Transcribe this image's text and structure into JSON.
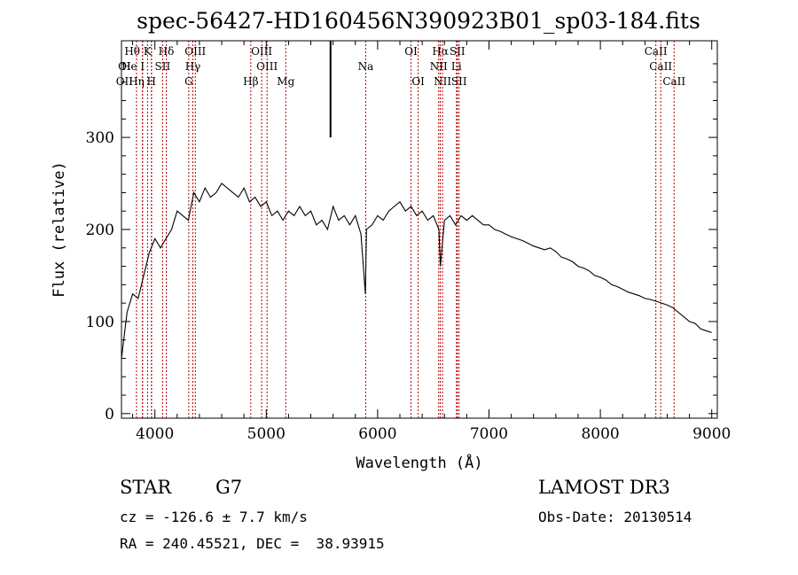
{
  "chart_data": {
    "type": "line",
    "title": "spec-56427-HD160456N390923B01_sp03-184.fits",
    "xlabel": "Wavelength (Å)",
    "ylabel": "Flux (relative)",
    "xlim": [
      3700,
      9050
    ],
    "ylim": [
      -5,
      405
    ],
    "xticks": [
      4000,
      5000,
      6000,
      7000,
      8000,
      9000
    ],
    "yticks": [
      0,
      100,
      200,
      300
    ],
    "series": [
      {
        "name": "flux",
        "x": [
          3700,
          3750,
          3800,
          3850,
          3900,
          3950,
          4000,
          4050,
          4100,
          4150,
          4200,
          4250,
          4300,
          4350,
          4400,
          4450,
          4500,
          4550,
          4600,
          4650,
          4700,
          4750,
          4800,
          4850,
          4900,
          4950,
          5000,
          5050,
          5100,
          5150,
          5200,
          5250,
          5300,
          5350,
          5400,
          5450,
          5500,
          5550,
          5600,
          5650,
          5700,
          5750,
          5800,
          5850,
          5890,
          5900,
          5950,
          6000,
          6050,
          6100,
          6150,
          6200,
          6250,
          6300,
          6350,
          6400,
          6450,
          6500,
          6550,
          6563,
          6600,
          6650,
          6700,
          6750,
          6800,
          6850,
          6900,
          6950,
          7000,
          7050,
          7100,
          7150,
          7200,
          7250,
          7300,
          7350,
          7400,
          7450,
          7500,
          7550,
          7600,
          7650,
          7700,
          7750,
          7800,
          7850,
          7900,
          7950,
          8000,
          8050,
          8100,
          8150,
          8200,
          8250,
          8300,
          8350,
          8400,
          8450,
          8500,
          8550,
          8600,
          8650,
          8700,
          8750,
          8800,
          8850,
          8900,
          8950,
          9000
        ],
        "y": [
          60,
          110,
          130,
          125,
          150,
          175,
          190,
          180,
          190,
          200,
          220,
          215,
          210,
          240,
          230,
          245,
          235,
          240,
          250,
          245,
          240,
          235,
          245,
          230,
          235,
          225,
          230,
          215,
          220,
          210,
          220,
          215,
          225,
          215,
          220,
          205,
          210,
          200,
          225,
          210,
          215,
          205,
          215,
          195,
          130,
          200,
          205,
          215,
          210,
          220,
          225,
          230,
          220,
          225,
          215,
          220,
          210,
          215,
          200,
          160,
          210,
          215,
          205,
          215,
          210,
          215,
          210,
          205,
          205,
          200,
          198,
          195,
          192,
          190,
          188,
          185,
          182,
          180,
          178,
          180,
          176,
          170,
          168,
          165,
          160,
          158,
          155,
          150,
          148,
          145,
          140,
          138,
          135,
          132,
          130,
          128,
          125,
          124,
          122,
          120,
          118,
          115,
          110,
          105,
          100,
          98,
          92,
          90,
          88
        ]
      }
    ],
    "lines": [
      {
        "name": "Ca II K",
        "wl": 3934
      },
      {
        "name": "Ca II H",
        "wl": 3969
      },
      {
        "name": "H-epsilon",
        "wl": 3970
      },
      {
        "name": "H-eta",
        "wl": 3835
      },
      {
        "name": "H-zeta",
        "wl": 3889
      },
      {
        "name": "He I",
        "wl": 3889
      },
      {
        "name": "S II",
        "wl": 4069
      },
      {
        "name": "H-delta",
        "wl": 4102
      },
      {
        "name": "G band",
        "wl": 4304
      },
      {
        "name": "H-gamma",
        "wl": 4341
      },
      {
        "name": "O III 4363",
        "wl": 4363
      },
      {
        "name": "H-beta",
        "wl": 4861
      },
      {
        "name": "O III 4959",
        "wl": 4959
      },
      {
        "name": "O III 5007",
        "wl": 5007
      },
      {
        "name": "Mg",
        "wl": 5175
      },
      {
        "name": "Na",
        "wl": 5893
      },
      {
        "name": "O I 6300",
        "wl": 6300
      },
      {
        "name": "O I 6364",
        "wl": 6364
      },
      {
        "name": "N II 6548",
        "wl": 6548
      },
      {
        "name": "H-alpha",
        "wl": 6563
      },
      {
        "name": "N II 6583",
        "wl": 6583
      },
      {
        "name": "Li",
        "wl": 6708
      },
      {
        "name": "S II 6716",
        "wl": 6716
      },
      {
        "name": "S II 6731",
        "wl": 6731
      },
      {
        "name": "Ca II 8498",
        "wl": 8498
      },
      {
        "name": "Ca II 8542",
        "wl": 8542
      },
      {
        "name": "Ca II 8662",
        "wl": 8662
      }
    ],
    "line_labels": [
      {
        "text": "Hθ",
        "wl": 3797,
        "row": 0
      },
      {
        "text": "K",
        "wl": 3934,
        "row": 0
      },
      {
        "text": "Hδ",
        "wl": 4102,
        "row": 0
      },
      {
        "text": "OIII",
        "wl": 4363,
        "row": 0
      },
      {
        "text": "OIII",
        "wl": 4959,
        "row": 0
      },
      {
        "text": "OI",
        "wl": 6300,
        "row": 0
      },
      {
        "text": "Hα",
        "wl": 6563,
        "row": 0
      },
      {
        "text": "SII",
        "wl": 6716,
        "row": 0
      },
      {
        "text": "CaII",
        "wl": 8498,
        "row": 0
      },
      {
        "text": "OI",
        "wl": 3727,
        "row": 1
      },
      {
        "text": "He",
        "wl": 3770,
        "row": 1
      },
      {
        "text": "I",
        "wl": 3889,
        "row": 1
      },
      {
        "text": "SII",
        "wl": 4069,
        "row": 1
      },
      {
        "text": "Hγ",
        "wl": 4341,
        "row": 1
      },
      {
        "text": "OIII",
        "wl": 5007,
        "row": 1
      },
      {
        "text": "Na",
        "wl": 5893,
        "row": 1
      },
      {
        "text": "NII",
        "wl": 6548,
        "row": 1
      },
      {
        "text": "Li",
        "wl": 6708,
        "row": 1
      },
      {
        "text": "CaII",
        "wl": 8542,
        "row": 1
      },
      {
        "text": "OII",
        "wl": 3727,
        "row": 2
      },
      {
        "text": "Hη",
        "wl": 3835,
        "row": 2
      },
      {
        "text": "H",
        "wl": 3969,
        "row": 2
      },
      {
        "text": "G",
        "wl": 4304,
        "row": 2
      },
      {
        "text": "Hβ",
        "wl": 4861,
        "row": 2
      },
      {
        "text": "Mg",
        "wl": 5175,
        "row": 2
      },
      {
        "text": "OI",
        "wl": 6364,
        "row": 2
      },
      {
        "text": "NII",
        "wl": 6583,
        "row": 2
      },
      {
        "text": "SII",
        "wl": 6731,
        "row": 2
      },
      {
        "text": "CaII",
        "wl": 8662,
        "row": 2
      }
    ],
    "spike": {
      "wl": 5577,
      "from": 300,
      "to": 405
    },
    "line_color": "#b30000",
    "grid": false
  },
  "info": {
    "object_class": "STAR",
    "subclass": "G7",
    "survey": "LAMOST DR3",
    "redshift": "cz = -126.6 ± 7.7 km/s",
    "obs_date": "Obs-Date: 20130514",
    "coords": "RA = 240.45521, DEC =  38.93915"
  }
}
